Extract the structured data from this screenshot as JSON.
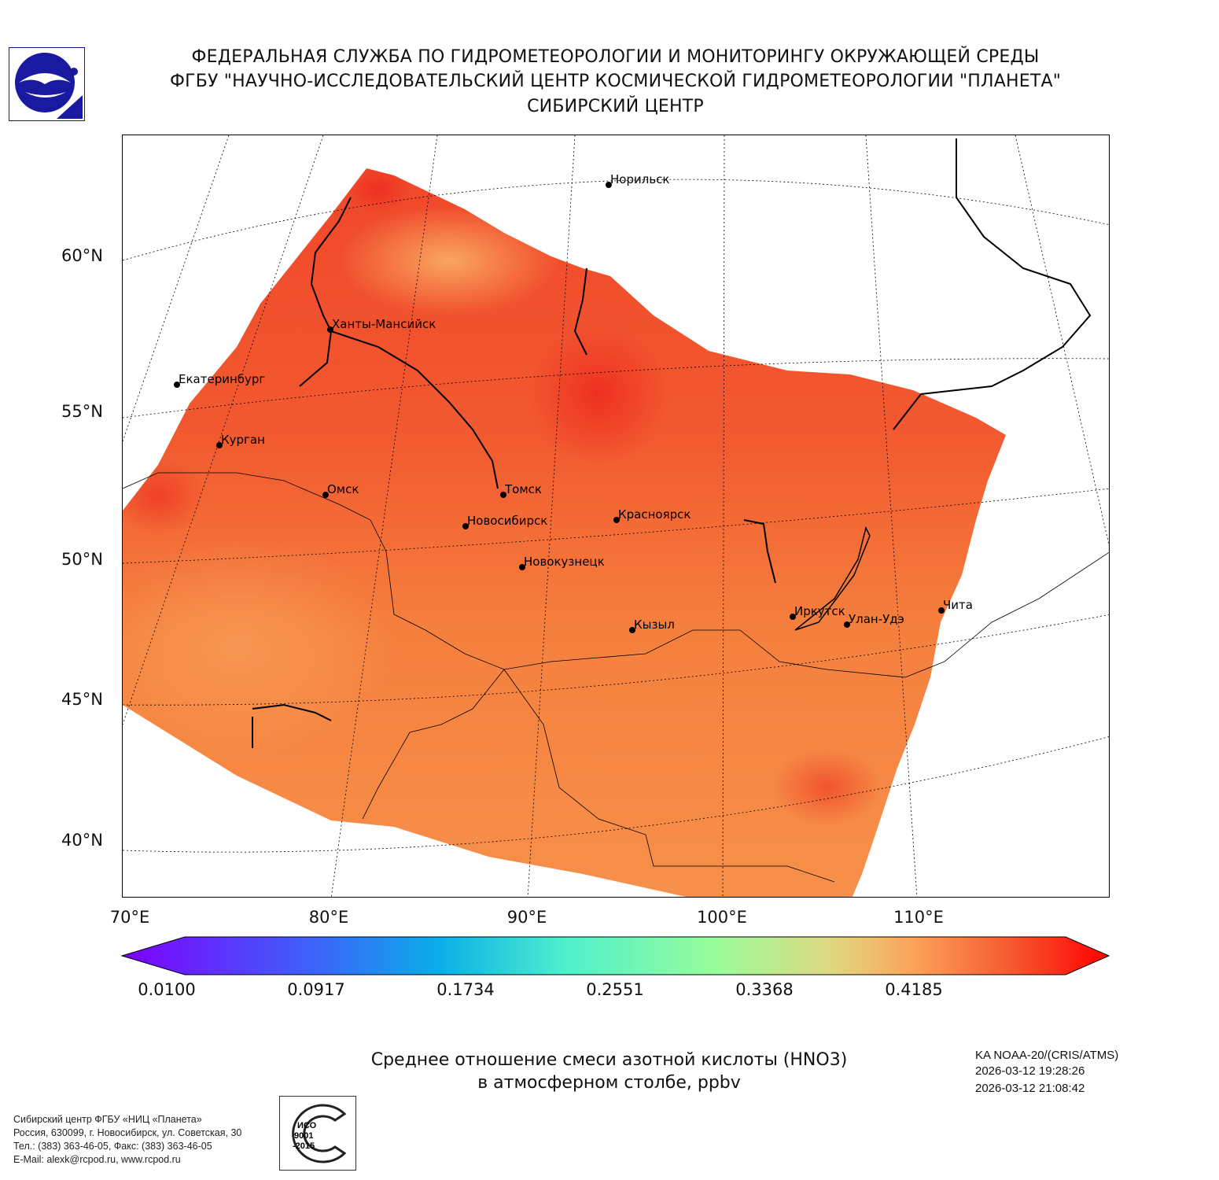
{
  "header": {
    "line1": "ФЕДЕРАЛЬНАЯ СЛУЖБА ПО ГИДРОМЕТЕОРОЛОГИИ И МОНИТОРИНГУ ОКРУЖАЮЩЕЙ СРЕДЫ",
    "line2": "ФГБУ \"НАУЧНО-ИССЛЕДОВАТЕЛЬСКИЙ ЦЕНТР КОСМИЧЕСКОЙ ГИДРОМЕТЕОРОЛОГИИ \"ПЛАНЕТА\"",
    "line3": "СИБИРСКИЙ ЦЕНТР"
  },
  "map": {
    "lat_labels": [
      "60°N",
      "55°N",
      "50°N",
      "45°N",
      "40°N"
    ],
    "lon_labels": [
      "70°E",
      "80°E",
      "90°E",
      "100°E",
      "110°E"
    ],
    "cities": [
      "Норильск",
      "Ханты-Мансийск",
      "Екатеринбург",
      "Курган",
      "Омск",
      "Томск",
      "Новосибирск",
      "Красноярск",
      "Новокузнецк",
      "Кызыл",
      "Иркутск",
      "Улан-Удэ",
      "Чита"
    ],
    "colors": {
      "low": "#7f00ff",
      "mid": "#80ffb4",
      "high": "#ff0000",
      "field_dominant": "#f26a3a"
    }
  },
  "colorbar": {
    "ticks": [
      "0.0100",
      "0.0917",
      "0.1734",
      "0.2551",
      "0.3368",
      "0.4185"
    ],
    "range": [
      0.01,
      0.5
    ]
  },
  "caption": {
    "line1": "Среднее отношение смеси азотной кислоты (HNO3)",
    "line2": "в атмосферном столбе, ppbv"
  },
  "info": {
    "satellite": "KA NOAA-20/(CRIS/ATMS)",
    "time1": "2026-03-12 19:28:26",
    "time2": "2026-03-12 21:08:42"
  },
  "footer": {
    "org": "Сибирский центр ФГБУ «НИЦ «Планета»",
    "address": "Россия, 630099, г. Новосибирск, ул. Советская, 30",
    "phone": "Тел.: (383) 363-46-05, Факс: (383) 363-46-05",
    "email": "E-Mail: alexk@rcpod.ru, www.rcpod.ru",
    "iso_logo": "ДОБРОСОВЕСТНЫЙ ИСО 9001-2015 ПОСТАВЩИК"
  }
}
